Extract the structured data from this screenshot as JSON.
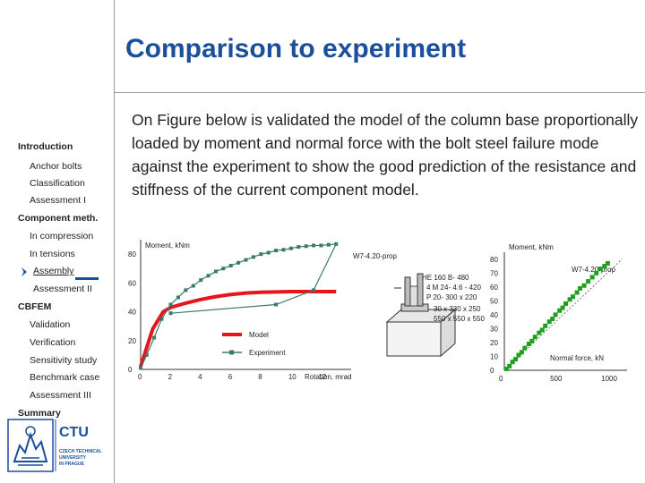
{
  "slide": {
    "title": "Comparison to experiment",
    "body": "On Figure below is validated the model of the column base proportionally loaded by moment and normal force with the bolt steel failure mode against the experiment to show the good prediction of the resistance and stiffness of the current component model."
  },
  "nav": {
    "items": [
      {
        "label": "Introduction",
        "level": "head",
        "active": false
      },
      {
        "label": "Anchor bolts",
        "level": "sub",
        "active": false
      },
      {
        "label": "Classification",
        "level": "sub",
        "active": false
      },
      {
        "label": "Assessment I",
        "level": "sub",
        "active": false
      },
      {
        "label": "Component meth.",
        "level": "head",
        "active": false
      },
      {
        "label": "In compression",
        "level": "sub",
        "active": false
      },
      {
        "label": "In tensions",
        "level": "sub",
        "active": false
      },
      {
        "label": "Assembly",
        "level": "sub",
        "active": true
      },
      {
        "label": "Assessment II",
        "level": "sub",
        "active": false
      },
      {
        "label": "CBFEM",
        "level": "head",
        "active": false
      },
      {
        "label": "Validation",
        "level": "sub",
        "active": false
      },
      {
        "label": "Verification",
        "level": "sub",
        "active": false
      },
      {
        "label": "Sensitivity study",
        "level": "sub",
        "active": false
      },
      {
        "label": "Benchmark case",
        "level": "sub",
        "active": false
      },
      {
        "label": "Assessment III",
        "level": "sub",
        "active": false
      },
      {
        "label": "Summary",
        "level": "head",
        "active": false
      }
    ]
  },
  "logo": {
    "text": "CTU",
    "subtext": [
      "CZECH TECHNICAL",
      "UNIVERSITY",
      "IN PRAGUE"
    ]
  },
  "colors": {
    "title": "#1a4f9c",
    "model": "#e8141b",
    "experiment": "#3a7a6a",
    "green_points": "#1ea01e"
  },
  "figure": {
    "specimen": {
      "label": "W7-4.20-prop",
      "profile": "HE 160 B- 480",
      "bolts": "4 M 24- 4.6 - 420",
      "plate": "P 20- 300 x 220",
      "base_top": "30 x 330 x 250",
      "base_bottom": "550 x 550 x 550"
    }
  },
  "chart_data": [
    {
      "type": "line",
      "ylabel": "Moment, kNm",
      "xlabel": "Rotation, mrad",
      "xlim": [
        0,
        14
      ],
      "ylim": [
        0,
        90
      ],
      "xticks": [
        "0",
        "2",
        "4",
        "6",
        "8",
        "10",
        "12"
      ],
      "yticks": [
        "0",
        "20",
        "40",
        "60",
        "80"
      ],
      "annotation": "W7-4.20-prop",
      "legend": [
        "Model",
        "Experiment"
      ],
      "series": [
        {
          "name": "Model",
          "x": [
            0,
            0.8,
            1.5,
            2.0,
            3.0,
            4.0,
            5.0,
            6.0,
            7.0,
            8.0,
            9.0,
            10.0,
            11.0,
            12.0,
            13.0
          ],
          "y": [
            2,
            28,
            40,
            43,
            46,
            48.5,
            50.5,
            52,
            53,
            53.5,
            53.8,
            54,
            54,
            54,
            54
          ]
        },
        {
          "name": "Experiment",
          "x": [
            0,
            0.4,
            0.9,
            1.4,
            2.0,
            2.5,
            3.0,
            3.5,
            4.0,
            4.5,
            5.0,
            5.5,
            6.0,
            6.5,
            7.0,
            7.5,
            8.0,
            8.5,
            9.0,
            9.5,
            10.0,
            10.5,
            11.0,
            11.5,
            12.0,
            12.5,
            13.0,
            11.5,
            9.0,
            2.0
          ],
          "y": [
            1,
            10,
            22,
            35,
            45,
            50,
            55,
            58,
            62,
            65,
            68,
            70,
            72,
            74,
            76,
            78,
            80,
            81,
            82.5,
            83,
            84,
            85,
            85.5,
            86,
            86,
            86.5,
            87,
            55,
            45,
            39
          ]
        }
      ]
    },
    {
      "type": "scatter",
      "ylabel": "Moment, kNm",
      "xlabel": "Normal force, kN",
      "xlim": [
        0,
        1200
      ],
      "ylim": [
        0,
        85
      ],
      "xticks": [
        "0",
        "500",
        "1000"
      ],
      "yticks": [
        "0",
        "10",
        "20",
        "30",
        "40",
        "50",
        "60",
        "70",
        "80"
      ],
      "annotation": "W7-4.20-prop",
      "series": [
        {
          "x": [
            20,
            50,
            80,
            110,
            140,
            170,
            200,
            240,
            270,
            300,
            340,
            370,
            400,
            440,
            470,
            500,
            540,
            570,
            600,
            640,
            670,
            710,
            740,
            780,
            820,
            860,
            900,
            940,
            980,
            1010
          ],
          "y": [
            1,
            3,
            6,
            8,
            11,
            13,
            16,
            19,
            21,
            24,
            27,
            29,
            32,
            35,
            37,
            40,
            43,
            45,
            48,
            51,
            53,
            56,
            59,
            61,
            64,
            67,
            70,
            73,
            75,
            77
          ]
        }
      ]
    }
  ]
}
